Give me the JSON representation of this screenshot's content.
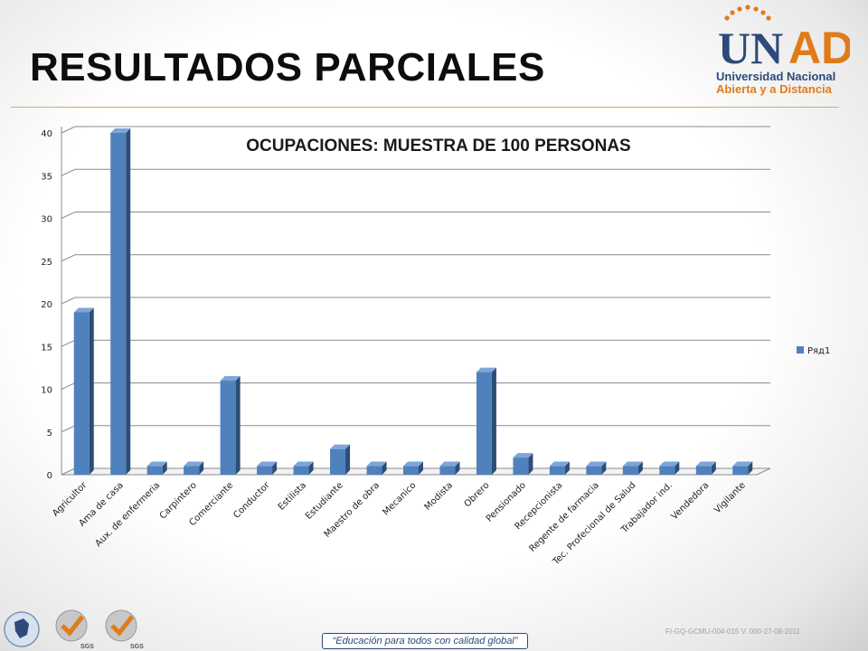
{
  "slide": {
    "title": "RESULTADOS PARCIALES",
    "logo": {
      "wordmark": "UNAD",
      "line1": "Universidad Nacional",
      "line2": "Abierta y a Distancia"
    },
    "footer": {
      "motto": "“Educación para todos con calidad global”",
      "code": "FI-GQ-GCMU-004-015 V. 000-27-08-2011",
      "badge_label": "SGS"
    }
  },
  "colors": {
    "bar_front": "#4f81bd",
    "bar_side": "#2c4d75",
    "bar_top": "#7ea5d8",
    "grid": "#8c8c8c",
    "logo_blue": "#2d4a7a",
    "logo_orange": "#e07b1a"
  },
  "chart_data": {
    "type": "bar",
    "title": "OCUPACIONES: MUESTRA DE 100 PERSONAS",
    "categories": [
      "Agricultor",
      "Ama de casa",
      "Aux. de enfermeria",
      "Carpintero",
      "Comerciante",
      "Conductor",
      "Estilista",
      "Estudiante",
      "Maestro de obra",
      "Mecanico",
      "Modista",
      "Obrero",
      "Pensionado",
      "Recepcionista",
      "Regente de farmacia",
      "Tec. Profecional de Salud",
      "Trabajador ind.",
      "Vendedora",
      "Vigilante"
    ],
    "series": [
      {
        "name": "Ряд1",
        "values": [
          19,
          40,
          1,
          1,
          11,
          1,
          1,
          3,
          1,
          1,
          1,
          12,
          2,
          1,
          1,
          1,
          1,
          1,
          1
        ]
      }
    ],
    "ylim": [
      0,
      40
    ],
    "yticks": [
      0,
      5,
      10,
      15,
      20,
      25,
      30,
      35,
      40
    ],
    "xlabel": "",
    "ylabel": "",
    "grid": true,
    "legend": "right",
    "style": "3d"
  }
}
